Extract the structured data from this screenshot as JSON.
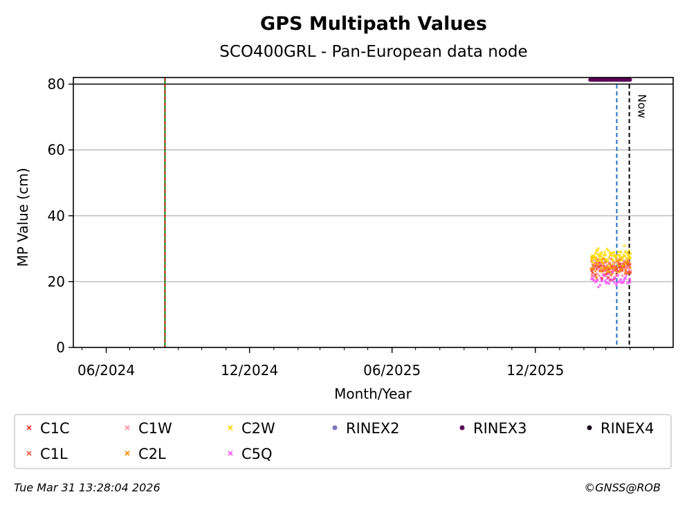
{
  "chart_data": {
    "type": "scatter",
    "title": "GPS Multipath Values",
    "subtitle": "SCO400GRL - Pan-European data node",
    "xlabel": "Month/Year",
    "ylabel": "MP Value (cm)",
    "ylim": [
      0,
      82
    ],
    "yticks": [
      0,
      20,
      40,
      60,
      80
    ],
    "xlim": [
      "2024-04-20",
      "2026-05-26"
    ],
    "xticks": [
      {
        "date": "2024-06-01",
        "label": "06/2024"
      },
      {
        "date": "2024-12-01",
        "label": "12/2024"
      },
      {
        "date": "2025-06-01",
        "label": "06/2025"
      },
      {
        "date": "2025-12-01",
        "label": "12/2025"
      }
    ],
    "grid": true,
    "legend_placement": "below",
    "reference_line_y": 80,
    "vlines": [
      {
        "date": "2024-08-15",
        "colors": [
          "#008000",
          "#cc0000"
        ],
        "style": "dashed"
      },
      {
        "date": "2026-03-15",
        "colors": [
          "#1f6fbf"
        ],
        "style": "dashed"
      },
      {
        "date": "2026-03-31",
        "colors": [
          "#000000"
        ],
        "style": "dashed",
        "label": "Now"
      }
    ],
    "rinex_bar": {
      "series": "RINEX3",
      "start": "2026-02-09",
      "end": "2026-04-01",
      "y": 81.3
    },
    "point_range": {
      "start": "2026-02-10",
      "end": "2026-04-01"
    },
    "series": [
      {
        "name": "C1C",
        "color": "#e8372c",
        "marker": "x",
        "mean": 23.5,
        "spread": 2.2
      },
      {
        "name": "C1W",
        "color": "#ff8fa0",
        "marker": "x",
        "mean": 24.5,
        "spread": 2.0
      },
      {
        "name": "C2W",
        "color": "#ffd800",
        "marker": "x",
        "mean": 27.5,
        "spread": 2.0
      },
      {
        "name": "RINEX2",
        "color": "#7b78c0",
        "marker": "o"
      },
      {
        "name": "RINEX3",
        "color": "#5c0058",
        "marker": "o"
      },
      {
        "name": "RINEX4",
        "color": "#140018",
        "marker": "o"
      },
      {
        "name": "C1L",
        "color": "#f05a40",
        "marker": "x",
        "mean": 25.0,
        "spread": 1.6
      },
      {
        "name": "C2L",
        "color": "#ff8c00",
        "marker": "x",
        "mean": 24.0,
        "spread": 1.8
      },
      {
        "name": "C5Q",
        "color": "#ff55ff",
        "marker": "x",
        "mean": 20.5,
        "spread": 1.8
      }
    ]
  },
  "footer": {
    "timestamp": "Tue Mar 31 13:28:04 2026",
    "copyright": "©GNSS@ROB"
  }
}
